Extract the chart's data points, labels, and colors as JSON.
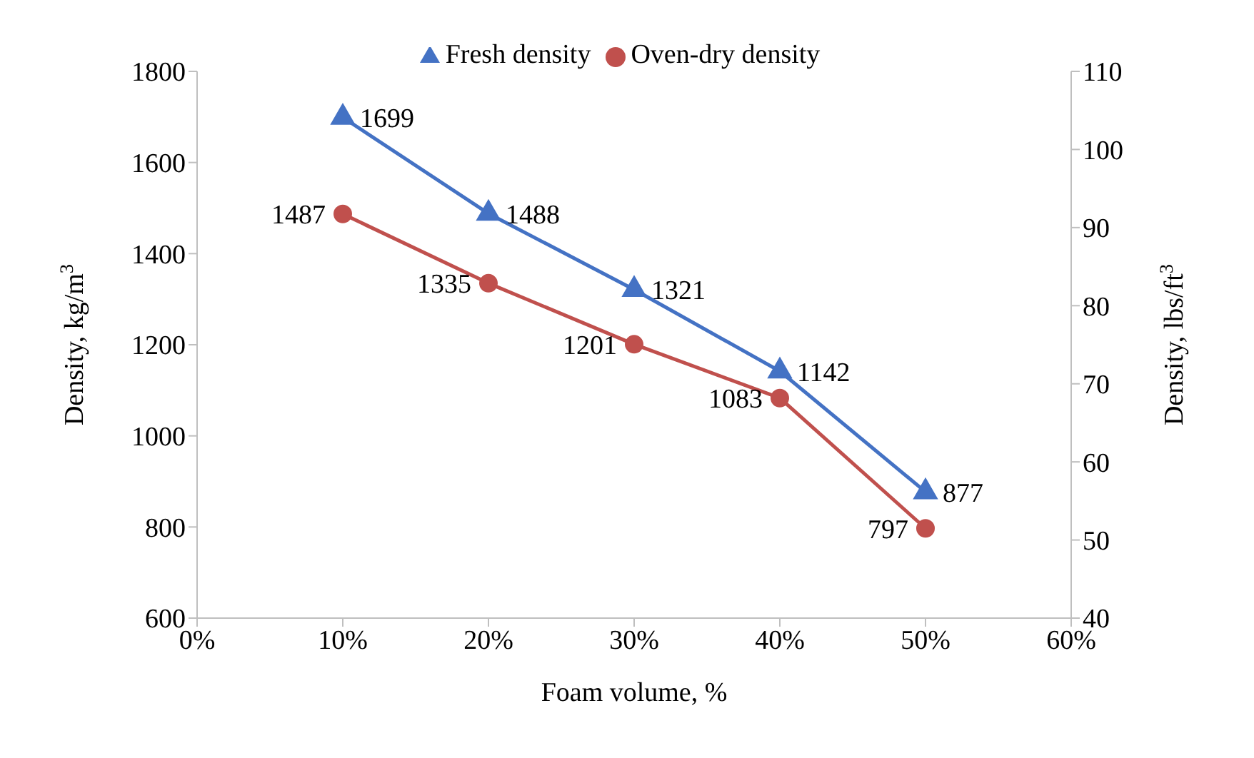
{
  "chart_data": {
    "type": "line",
    "xlabel": "Foam volume, %",
    "ylabel": "Density, kg/m$^{3}$",
    "y2label": "Density, lbs/ft$^{3}$",
    "x": [
      10,
      20,
      30,
      40,
      50
    ],
    "series": [
      {
        "name": "Fresh density",
        "color": "#4472c4",
        "marker": "triangle",
        "values": [
          1699,
          1488,
          1321,
          1142,
          877
        ]
      },
      {
        "name": "Oven-dry density",
        "color": "#c0504d",
        "marker": "circle",
        "values": [
          1487,
          1335,
          1201,
          1083,
          797
        ]
      }
    ],
    "xlim": [
      0,
      60
    ],
    "xticks": [
      {
        "value": 0,
        "label": "0%"
      },
      {
        "value": 10,
        "label": "10%"
      },
      {
        "value": 20,
        "label": "20%"
      },
      {
        "value": 30,
        "label": "30%"
      },
      {
        "value": 40,
        "label": "40%"
      },
      {
        "value": 50,
        "label": "50%"
      },
      {
        "value": 60,
        "label": "60%"
      }
    ],
    "ylim": [
      600,
      1800
    ],
    "yticks": [
      600,
      800,
      1000,
      1200,
      1400,
      1600,
      1800
    ],
    "y2lim": [
      40,
      110
    ],
    "y2ticks": [
      40,
      50,
      60,
      70,
      80,
      90,
      100,
      110
    ],
    "data_labels": true,
    "legend": "top",
    "grid": false,
    "line_style": "solid"
  }
}
